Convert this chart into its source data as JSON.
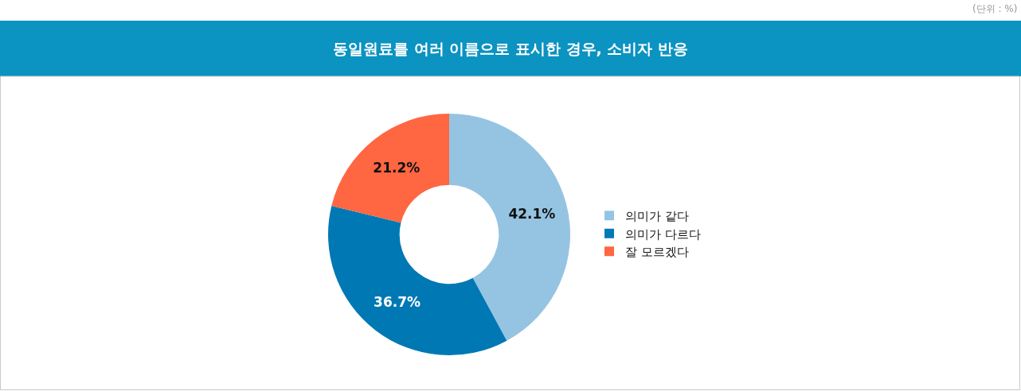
{
  "chart_data": {
    "type": "donut",
    "title": "동일원료를 여러 이름으로 표시한 경우, 소비자 반응",
    "annotations": [
      "(단위 : %)"
    ],
    "categories": [
      "의미가 같다",
      "의미가 다르다",
      "잘 모르겠다"
    ],
    "values": [
      42.1,
      36.7,
      21.2
    ],
    "colors": [
      "#95c4e2",
      "#0078b4",
      "#ff6642"
    ],
    "value_labels": [
      "42.1%",
      "36.7%",
      "21.2%"
    ],
    "legend": "right"
  }
}
